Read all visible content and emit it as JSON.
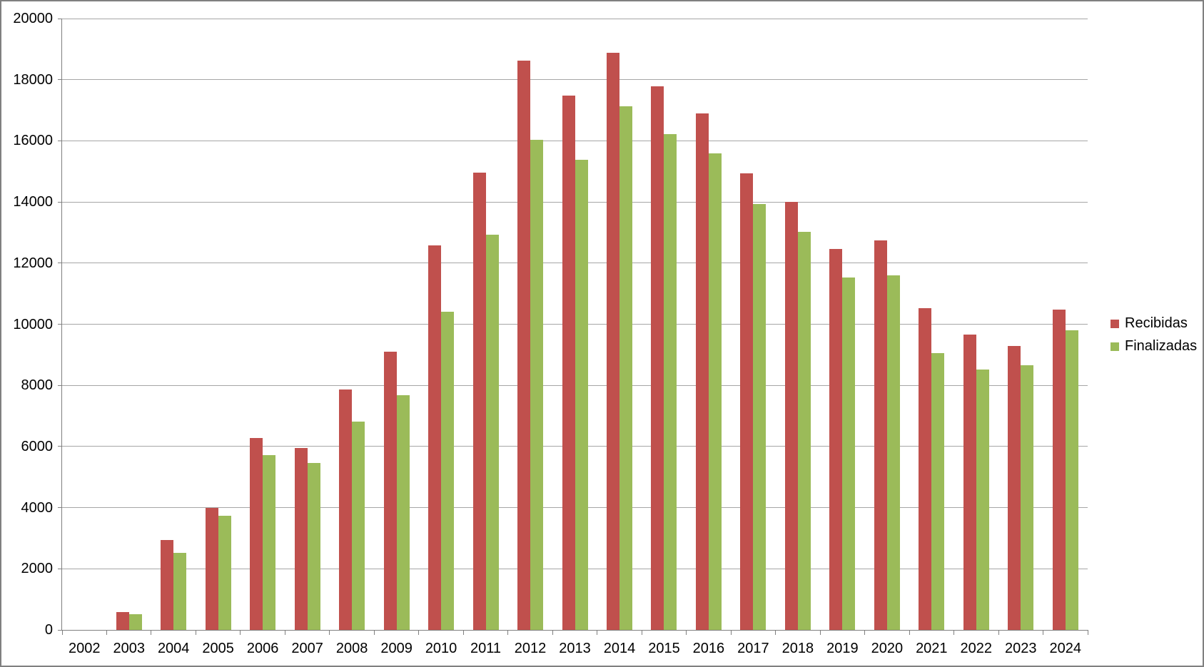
{
  "chart_data": {
    "type": "bar",
    "title": "",
    "xlabel": "",
    "ylabel": "",
    "categories": [
      "2002",
      "2003",
      "2004",
      "2005",
      "2006",
      "2007",
      "2008",
      "2009",
      "2010",
      "2011",
      "2012",
      "2013",
      "2014",
      "2015",
      "2016",
      "2017",
      "2018",
      "2019",
      "2020",
      "2021",
      "2022",
      "2023",
      "2024"
    ],
    "series": [
      {
        "name": "Recibidas",
        "color": "#C0504D",
        "values": [
          0,
          580,
          2940,
          4000,
          6270,
          5950,
          7870,
          9090,
          12570,
          14950,
          18630,
          17490,
          18870,
          17780,
          16900,
          14940,
          14010,
          12470,
          12740,
          10530,
          9670,
          9280,
          10480
        ]
      },
      {
        "name": "Finalizadas",
        "color": "#9BBB59",
        "values": [
          0,
          520,
          2530,
          3730,
          5720,
          5450,
          6820,
          7670,
          10410,
          12940,
          16030,
          15370,
          17130,
          16230,
          15580,
          13930,
          13030,
          11540,
          11600,
          9060,
          8520,
          8650,
          9800
        ]
      }
    ],
    "ylim": [
      0,
      20000
    ],
    "ytick_interval": 2000,
    "y_tick_labels": [
      "0",
      "2000",
      "4000",
      "6000",
      "8000",
      "10000",
      "12000",
      "14000",
      "16000",
      "18000",
      "20000"
    ],
    "grid": true,
    "legend_position": "right"
  },
  "colors": {
    "gridline": "#A6A6A6",
    "axis_line": "#7F7F7F",
    "tick_label": "#000000",
    "frame_border": "#808080",
    "background": "#FFFFFF"
  }
}
